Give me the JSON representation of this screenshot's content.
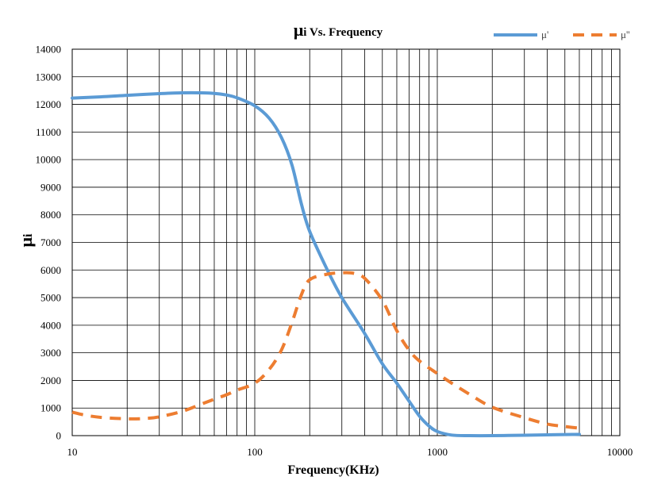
{
  "chart_data": {
    "type": "line",
    "title": {
      "symbol": "μ",
      "rest": "i Vs. Frequency"
    },
    "xlabel": "Frequency(KHz)",
    "ylabel": {
      "symbol": "μ",
      "rest": "i"
    },
    "xscale": "log",
    "xlim": [
      10,
      10000
    ],
    "ylim": [
      0,
      14000
    ],
    "x_ticks": [
      10,
      100,
      1000,
      10000
    ],
    "x_tick_labels": [
      "10",
      "100",
      "1000",
      "10000"
    ],
    "y_ticks": [
      0,
      1000,
      2000,
      3000,
      4000,
      5000,
      6000,
      7000,
      8000,
      9000,
      10000,
      11000,
      12000,
      13000,
      14000
    ],
    "y_tick_labels": [
      "0",
      "1000",
      "2000",
      "3000",
      "4000",
      "5000",
      "6000",
      "7000",
      "8000",
      "9000",
      "10000",
      "11000",
      "12000",
      "13000",
      "14000"
    ],
    "grid": true,
    "legend_position": "top-right",
    "series": [
      {
        "name": "μ'",
        "color": "#5B9BD5",
        "style": "solid",
        "points": [
          [
            10,
            12230
          ],
          [
            15,
            12280
          ],
          [
            20,
            12330
          ],
          [
            30,
            12390
          ],
          [
            40,
            12420
          ],
          [
            50,
            12420
          ],
          [
            60,
            12400
          ],
          [
            70,
            12340
          ],
          [
            80,
            12240
          ],
          [
            100,
            11950
          ],
          [
            120,
            11500
          ],
          [
            140,
            10800
          ],
          [
            160,
            9800
          ],
          [
            180,
            8400
          ],
          [
            200,
            7400
          ],
          [
            250,
            6000
          ],
          [
            300,
            5000
          ],
          [
            400,
            3700
          ],
          [
            500,
            2600
          ],
          [
            600,
            1900
          ],
          [
            700,
            1250
          ],
          [
            800,
            700
          ],
          [
            900,
            350
          ],
          [
            1000,
            150
          ],
          [
            1200,
            20
          ],
          [
            1500,
            0
          ],
          [
            2000,
            0
          ],
          [
            3000,
            15
          ],
          [
            4000,
            30
          ],
          [
            5000,
            40
          ],
          [
            6000,
            45
          ]
        ]
      },
      {
        "name": "μ''",
        "color": "#ED7D31",
        "style": "dashed",
        "points": [
          [
            10,
            850
          ],
          [
            12,
            730
          ],
          [
            15,
            650
          ],
          [
            20,
            610
          ],
          [
            25,
            620
          ],
          [
            30,
            680
          ],
          [
            40,
            880
          ],
          [
            50,
            1120
          ],
          [
            60,
            1320
          ],
          [
            70,
            1480
          ],
          [
            80,
            1650
          ],
          [
            100,
            1900
          ],
          [
            120,
            2400
          ],
          [
            140,
            3100
          ],
          [
            160,
            4100
          ],
          [
            180,
            5100
          ],
          [
            200,
            5650
          ],
          [
            250,
            5850
          ],
          [
            300,
            5900
          ],
          [
            350,
            5880
          ],
          [
            400,
            5700
          ],
          [
            500,
            4900
          ],
          [
            600,
            3800
          ],
          [
            700,
            3100
          ],
          [
            800,
            2700
          ],
          [
            1000,
            2250
          ],
          [
            1200,
            1900
          ],
          [
            1500,
            1500
          ],
          [
            2000,
            1030
          ],
          [
            3000,
            650
          ],
          [
            4000,
            420
          ],
          [
            5000,
            330
          ],
          [
            6000,
            270
          ]
        ]
      }
    ]
  }
}
